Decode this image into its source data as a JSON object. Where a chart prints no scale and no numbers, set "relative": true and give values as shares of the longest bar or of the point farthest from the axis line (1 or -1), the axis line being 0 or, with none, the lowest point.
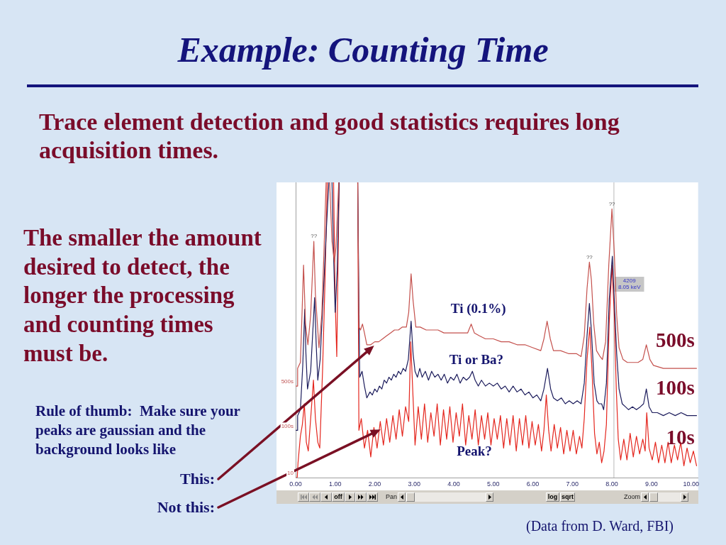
{
  "chart_data": {
    "type": "line",
    "title": "Example: Counting Time",
    "subtitle": "Trace element detection and good statistics requires long acquisition times.",
    "relative": true,
    "xlim": [
      0,
      10.18
    ],
    "xticks": [
      {
        "value": 0,
        "label": "0.00"
      },
      {
        "value": 1,
        "label": "1.00"
      },
      {
        "value": 2,
        "label": "2.00"
      },
      {
        "value": 3,
        "label": "3.00"
      },
      {
        "value": 4,
        "label": "4.00"
      },
      {
        "value": 5,
        "label": "5.00"
      },
      {
        "value": 6,
        "label": "6.00"
      },
      {
        "value": 7,
        "label": "7.00"
      },
      {
        "value": 8,
        "label": "8.00"
      },
      {
        "value": 9,
        "label": "9.00"
      },
      {
        "value": 10,
        "label": "10.00"
      }
    ],
    "series": [
      {
        "name": "500s",
        "color": "#c4504c",
        "x": [
          0,
          0.04,
          0.05,
          0.12,
          0.16,
          0.2,
          0.25,
          0.31,
          0.38,
          0.46,
          0.5,
          0.59,
          0.66,
          0.72,
          0.77,
          0.82,
          0.86,
          0.92,
          0.98,
          1.02,
          1.09,
          1.3,
          1.57,
          1.6,
          1.64,
          1.69,
          1.74,
          1.8,
          1.9,
          2,
          2.1,
          2.2,
          2.3,
          2.4,
          2.5,
          2.6,
          2.7,
          2.8,
          2.86,
          2.92,
          2.97,
          3.04,
          3.15,
          3.3,
          3.45,
          3.6,
          3.75,
          3.9,
          4.05,
          4.2,
          4.35,
          4.44,
          4.52,
          4.65,
          4.8,
          5,
          5.2,
          5.4,
          5.6,
          5.8,
          6,
          6.2,
          6.28,
          6.36,
          6.44,
          6.52,
          6.7,
          6.9,
          7.1,
          7.22,
          7.3,
          7.37,
          7.43,
          7.48,
          7.54,
          7.61,
          7.7,
          7.76,
          7.84,
          7.92,
          8,
          8.06,
          8.12,
          8.18,
          8.28,
          8.39,
          8.55,
          8.66,
          8.78,
          8.87,
          8.96,
          9.05,
          9.3,
          9.55,
          9.8,
          10.14
        ],
        "values": [
          0.31,
          0.31,
          0.37,
          0.39,
          0.55,
          0.72,
          0.52,
          0.45,
          0.55,
          0.8,
          0.62,
          0.44,
          0.55,
          0.78,
          1,
          null,
          1,
          0.8,
          0.73,
          0.78,
          1,
          null,
          1,
          0.51,
          0.5,
          0.52,
          0.49,
          0.45,
          0.45,
          0.46,
          0.46,
          0.47,
          0.48,
          0.49,
          0.5,
          0.5,
          0.51,
          0.51,
          0.56,
          0.69,
          0.6,
          0.51,
          0.51,
          0.5,
          0.5,
          0.5,
          0.49,
          0.49,
          0.49,
          0.49,
          0.49,
          0.52,
          0.49,
          0.48,
          0.47,
          0.47,
          0.46,
          0.46,
          0.45,
          0.45,
          0.44,
          0.43,
          0.47,
          0.53,
          0.47,
          0.43,
          0.43,
          0.42,
          0.42,
          0.41,
          0.48,
          0.64,
          0.73,
          0.67,
          0.52,
          0.43,
          0.41,
          0.4,
          0.46,
          0.72,
          0.91,
          0.76,
          0.55,
          0.44,
          0.4,
          0.39,
          0.39,
          0.39,
          0.4,
          0.45,
          0.4,
          0.38,
          0.37,
          0.37,
          0.37,
          0.37
        ]
      },
      {
        "name": "100s",
        "color": "#1c1c5c",
        "x": [
          0,
          0.04,
          0.05,
          0.12,
          0.18,
          0.23,
          0.26,
          0.3,
          0.38,
          0.48,
          0.52,
          0.56,
          0.62,
          0.7,
          0.78,
          0.84,
          0.88,
          0.92,
          0.96,
          1.0,
          1.05,
          1.1,
          1.3,
          1.57,
          1.62,
          1.68,
          1.74,
          1.8,
          1.88,
          1.94,
          2,
          2.06,
          2.12,
          2.18,
          2.24,
          2.3,
          2.36,
          2.42,
          2.48,
          2.54,
          2.6,
          2.66,
          2.72,
          2.78,
          2.85,
          2.92,
          2.97,
          3.02,
          3.08,
          3.14,
          3.2,
          3.28,
          3.36,
          3.44,
          3.52,
          3.6,
          3.68,
          3.76,
          3.84,
          3.92,
          4,
          4.08,
          4.16,
          4.24,
          4.32,
          4.4,
          4.47,
          4.54,
          4.62,
          4.7,
          4.8,
          4.9,
          5,
          5.1,
          5.2,
          5.3,
          5.4,
          5.5,
          5.6,
          5.7,
          5.8,
          5.9,
          6,
          6.1,
          6.2,
          6.28,
          6.37,
          6.45,
          6.52,
          6.62,
          6.72,
          6.82,
          6.92,
          7.02,
          7.12,
          7.22,
          7.3,
          7.37,
          7.43,
          7.48,
          7.55,
          7.62,
          7.67,
          7.74,
          7.79,
          7.86,
          7.93,
          8.01,
          8.06,
          8.12,
          8.18,
          8.26,
          8.34,
          8.42,
          8.52,
          8.62,
          8.72,
          8.8,
          8.87,
          8.94,
          9.02,
          9.15,
          9.3,
          9.45,
          9.6,
          9.75,
          9.9,
          10.14
        ],
        "values": [
          0.16,
          0.16,
          0.21,
          0.23,
          0.38,
          0.57,
          0.42,
          0.3,
          0.36,
          0.61,
          0.45,
          0.33,
          0.4,
          0.62,
          0.85,
          1,
          null,
          1,
          0.75,
          0.56,
          0.7,
          1,
          null,
          1,
          0.34,
          0.36,
          0.31,
          0.27,
          0.29,
          0.28,
          0.3,
          0.29,
          0.31,
          0.3,
          0.33,
          0.32,
          0.34,
          0.33,
          0.35,
          0.34,
          0.36,
          0.35,
          0.37,
          0.36,
          0.4,
          0.53,
          0.42,
          0.36,
          0.34,
          0.37,
          0.34,
          0.36,
          0.33,
          0.36,
          0.34,
          0.35,
          0.33,
          0.35,
          0.32,
          0.34,
          0.33,
          0.35,
          0.32,
          0.34,
          0.33,
          0.34,
          0.36,
          0.33,
          0.31,
          0.33,
          0.31,
          0.32,
          0.31,
          0.32,
          0.3,
          0.31,
          0.29,
          0.31,
          0.29,
          0.3,
          0.28,
          0.29,
          0.27,
          0.28,
          0.26,
          0.3,
          0.37,
          0.3,
          0.27,
          0.26,
          0.27,
          0.25,
          0.26,
          0.25,
          0.26,
          0.25,
          0.32,
          0.48,
          0.59,
          0.5,
          0.32,
          0.26,
          0.25,
          0.25,
          0.23,
          0.32,
          0.6,
          0.75,
          0.6,
          0.42,
          0.3,
          0.25,
          0.24,
          0.23,
          0.24,
          0.23,
          0.24,
          0.25,
          0.3,
          0.24,
          0.22,
          0.22,
          0.21,
          0.22,
          0.21,
          0.22,
          0.21,
          0.21
        ]
      },
      {
        "name": "10s",
        "color": "#e4261e",
        "x": [
          0,
          0.04,
          0.06,
          0.12,
          0.17,
          0.22,
          0.27,
          0.32,
          0.38,
          0.45,
          0.5,
          0.56,
          0.61,
          0.68,
          0.74,
          0.8,
          0.88,
          0.96,
          1,
          1.04,
          1.07,
          1.1,
          1.3,
          1.57,
          1.6,
          1.66,
          1.74,
          1.82,
          1.9,
          1.98,
          2.06,
          2.14,
          2.22,
          2.3,
          2.38,
          2.46,
          2.54,
          2.62,
          2.7,
          2.78,
          2.86,
          2.91,
          2.97,
          3.02,
          3.1,
          3.18,
          3.26,
          3.34,
          3.42,
          3.5,
          3.58,
          3.66,
          3.74,
          3.82,
          3.9,
          3.98,
          4.06,
          4.14,
          4.22,
          4.3,
          4.38,
          4.46,
          4.54,
          4.62,
          4.7,
          4.78,
          4.86,
          4.94,
          5.02,
          5.1,
          5.18,
          5.26,
          5.34,
          5.42,
          5.5,
          5.58,
          5.66,
          5.74,
          5.82,
          5.9,
          5.98,
          6.06,
          6.14,
          6.22,
          6.28,
          6.34,
          6.4,
          6.46,
          6.54,
          6.62,
          6.7,
          6.78,
          6.86,
          6.94,
          7.02,
          7.1,
          7.18,
          7.24,
          7.3,
          7.37,
          7.44,
          7.5,
          7.56,
          7.62,
          7.68,
          7.74,
          7.8,
          7.86,
          7.93,
          8,
          8.06,
          8.11,
          8.16,
          8.22,
          8.3,
          8.38,
          8.46,
          8.54,
          8.62,
          8.7,
          8.78,
          8.84,
          8.88,
          8.94,
          9.02,
          9.1,
          9.18,
          9.26,
          9.34,
          9.42,
          9.5,
          9.58,
          9.66,
          9.74,
          9.82,
          9.9,
          9.98,
          10.06,
          10.14
        ],
        "values": [
          0,
          0,
          0.05,
          0.14,
          0.18,
          0.25,
          0.12,
          0.09,
          0.2,
          0.33,
          0.2,
          0.12,
          0.1,
          0.36,
          0.65,
          1,
          null,
          1,
          0.6,
          0.41,
          0.7,
          1,
          null,
          1,
          0.16,
          0.2,
          0.1,
          0.16,
          0.07,
          0.17,
          0.1,
          0.19,
          0.11,
          0.2,
          0.12,
          0.21,
          0.13,
          0.23,
          0.14,
          0.24,
          0.19,
          0.46,
          0.27,
          0.11,
          0.24,
          0.13,
          0.25,
          0.12,
          0.22,
          0.14,
          0.25,
          0.11,
          0.23,
          0.13,
          0.24,
          0.12,
          0.22,
          0.14,
          0.25,
          0.11,
          0.21,
          0.13,
          0.23,
          0.11,
          0.21,
          0.13,
          0.22,
          0.11,
          0.2,
          0.13,
          0.21,
          0.1,
          0.2,
          0.11,
          0.21,
          0.09,
          0.2,
          0.11,
          0.21,
          0.1,
          0.19,
          0.11,
          0.18,
          0.09,
          0.16,
          0.28,
          0.16,
          0.09,
          0.18,
          0.1,
          0.17,
          0.08,
          0.16,
          0.09,
          0.16,
          0.08,
          0.14,
          0.1,
          0.2,
          0.4,
          0.51,
          0.35,
          0.15,
          0.08,
          0.12,
          0.05,
          0.09,
          0.18,
          0.52,
          0.72,
          0.55,
          0.3,
          0.13,
          0.06,
          0.13,
          0.06,
          0.15,
          0.07,
          0.14,
          0.08,
          0.13,
          0.09,
          0.22,
          0.1,
          0.06,
          0.12,
          0.05,
          0.11,
          0.05,
          0.12,
          0.05,
          0.11,
          0.06,
          0.12,
          0.04,
          0.1,
          0.05,
          0.09,
          0.04
        ]
      }
    ],
    "ref_lines": [
      {
        "axis": "x",
        "value": 8.05,
        "label": "4209\n8.05 keV",
        "color": "#b8b8b8"
      }
    ],
    "annotations": [
      "The smaller the amount desired to detect, the longer the processing and counting times must be.",
      "Rule of thumb:  Make sure your peaks are gaussian and the background looks like",
      "(Data from D. Ward, FBI)",
      "off",
      "Pan",
      "log",
      "sqrt",
      "Zoom",
      "Ti (0.1%)",
      "Ti or Ba?",
      "Peak?",
      "This:",
      "Not this:",
      {
        "text": "??",
        "x": 0.46,
        "y": 0.8
      },
      {
        "text": "??",
        "x": 7.43,
        "y": 0.73
      },
      {
        "text": "??",
        "x": 8.0,
        "y": 0.91
      },
      {
        "text": "500s",
        "x": 0,
        "y": 0.31
      },
      {
        "text": "100s",
        "x": 0,
        "y": 0.16
      },
      {
        "text": "10",
        "x": 0,
        "y": 0
      }
    ]
  }
}
